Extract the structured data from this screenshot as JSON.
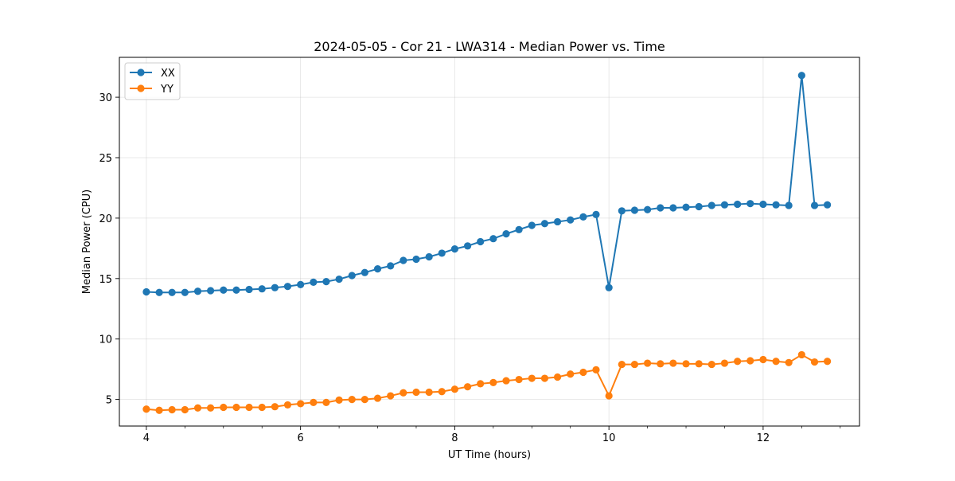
{
  "chart_data": {
    "type": "line",
    "title": "2024-05-05 - Cor 21 - LWA314 - Median Power vs. Time",
    "xlabel": "UT Time (hours)",
    "ylabel": "Median Power (CPU)",
    "xlim": [
      3.65,
      13.25
    ],
    "ylim": [
      2.8,
      33.3
    ],
    "xticks": [
      4,
      6,
      8,
      10,
      12
    ],
    "xtick_labels": [
      "4",
      "6",
      "8",
      "10",
      "12"
    ],
    "xminor_step": 0.5,
    "yticks": [
      5,
      10,
      15,
      20,
      25,
      30
    ],
    "ytick_labels": [
      "5",
      "10",
      "15",
      "20",
      "25",
      "30"
    ],
    "grid": true,
    "legend_position": "top-left",
    "x": [
      4.0,
      4.167,
      4.333,
      4.5,
      4.667,
      4.833,
      5.0,
      5.167,
      5.333,
      5.5,
      5.667,
      5.833,
      6.0,
      6.167,
      6.333,
      6.5,
      6.667,
      6.833,
      7.0,
      7.167,
      7.333,
      7.5,
      7.667,
      7.833,
      8.0,
      8.167,
      8.333,
      8.5,
      8.667,
      8.833,
      9.0,
      9.167,
      9.333,
      9.5,
      9.667,
      9.833,
      10.0,
      10.167,
      10.333,
      10.5,
      10.667,
      10.833,
      11.0,
      11.167,
      11.333,
      11.5,
      11.667,
      11.833,
      12.0,
      12.167,
      12.333,
      12.5,
      12.667,
      12.833
    ],
    "series": [
      {
        "name": "XX",
        "color": "#1f77b4",
        "values": [
          13.9,
          13.85,
          13.85,
          13.85,
          13.95,
          14.0,
          14.05,
          14.05,
          14.1,
          14.15,
          14.25,
          14.35,
          14.5,
          14.7,
          14.75,
          14.95,
          15.25,
          15.5,
          15.8,
          16.05,
          16.5,
          16.6,
          16.8,
          17.1,
          17.45,
          17.7,
          18.05,
          18.3,
          18.7,
          19.05,
          19.4,
          19.55,
          19.7,
          19.85,
          20.1,
          20.3,
          14.25,
          20.6,
          20.65,
          20.7,
          20.85,
          20.85,
          20.9,
          20.95,
          21.05,
          21.1,
          21.15,
          21.2,
          21.15,
          21.1,
          21.05,
          31.8,
          21.05,
          21.1
        ]
      },
      {
        "name": "YY",
        "color": "#ff7f0e",
        "values": [
          4.2,
          4.1,
          4.15,
          4.15,
          4.3,
          4.3,
          4.35,
          4.35,
          4.35,
          4.35,
          4.4,
          4.55,
          4.65,
          4.75,
          4.75,
          4.95,
          5.0,
          5.0,
          5.1,
          5.3,
          5.55,
          5.6,
          5.6,
          5.65,
          5.85,
          6.05,
          6.3,
          6.4,
          6.55,
          6.65,
          6.75,
          6.75,
          6.85,
          7.1,
          7.25,
          7.45,
          5.3,
          7.9,
          7.9,
          8.0,
          7.95,
          8.0,
          7.95,
          7.95,
          7.9,
          8.0,
          8.15,
          8.2,
          8.3,
          8.15,
          8.05,
          8.7,
          8.1,
          8.15
        ]
      }
    ]
  }
}
